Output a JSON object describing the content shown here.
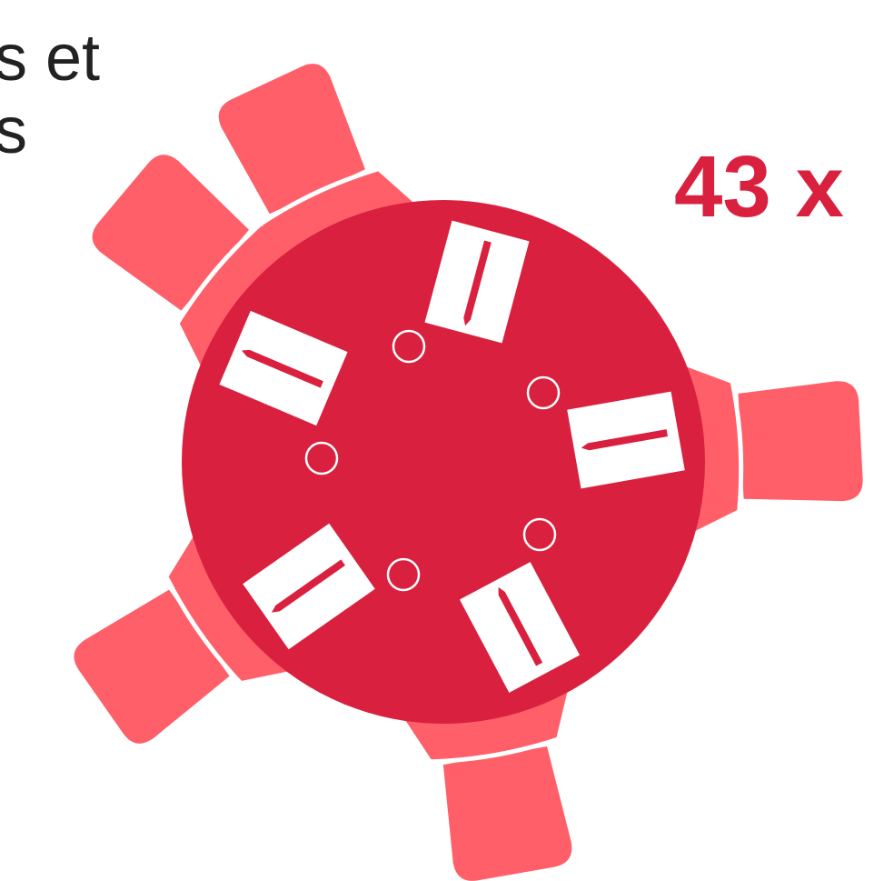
{
  "text": {
    "line1": "s et",
    "line2": "s"
  },
  "count": {
    "label": "43 x"
  },
  "illustration": {
    "subject": "round-table-with-5-chairs",
    "icons": [
      "round-table-icon",
      "chair-icon",
      "place-setting-icon",
      "knife-icon",
      "glass-icon"
    ]
  },
  "colors": {
    "table": "#D9213F",
    "chair": "#FF5F69",
    "count_text": "#D9213F",
    "text": "#222222",
    "setting": "#FFFFFF"
  }
}
